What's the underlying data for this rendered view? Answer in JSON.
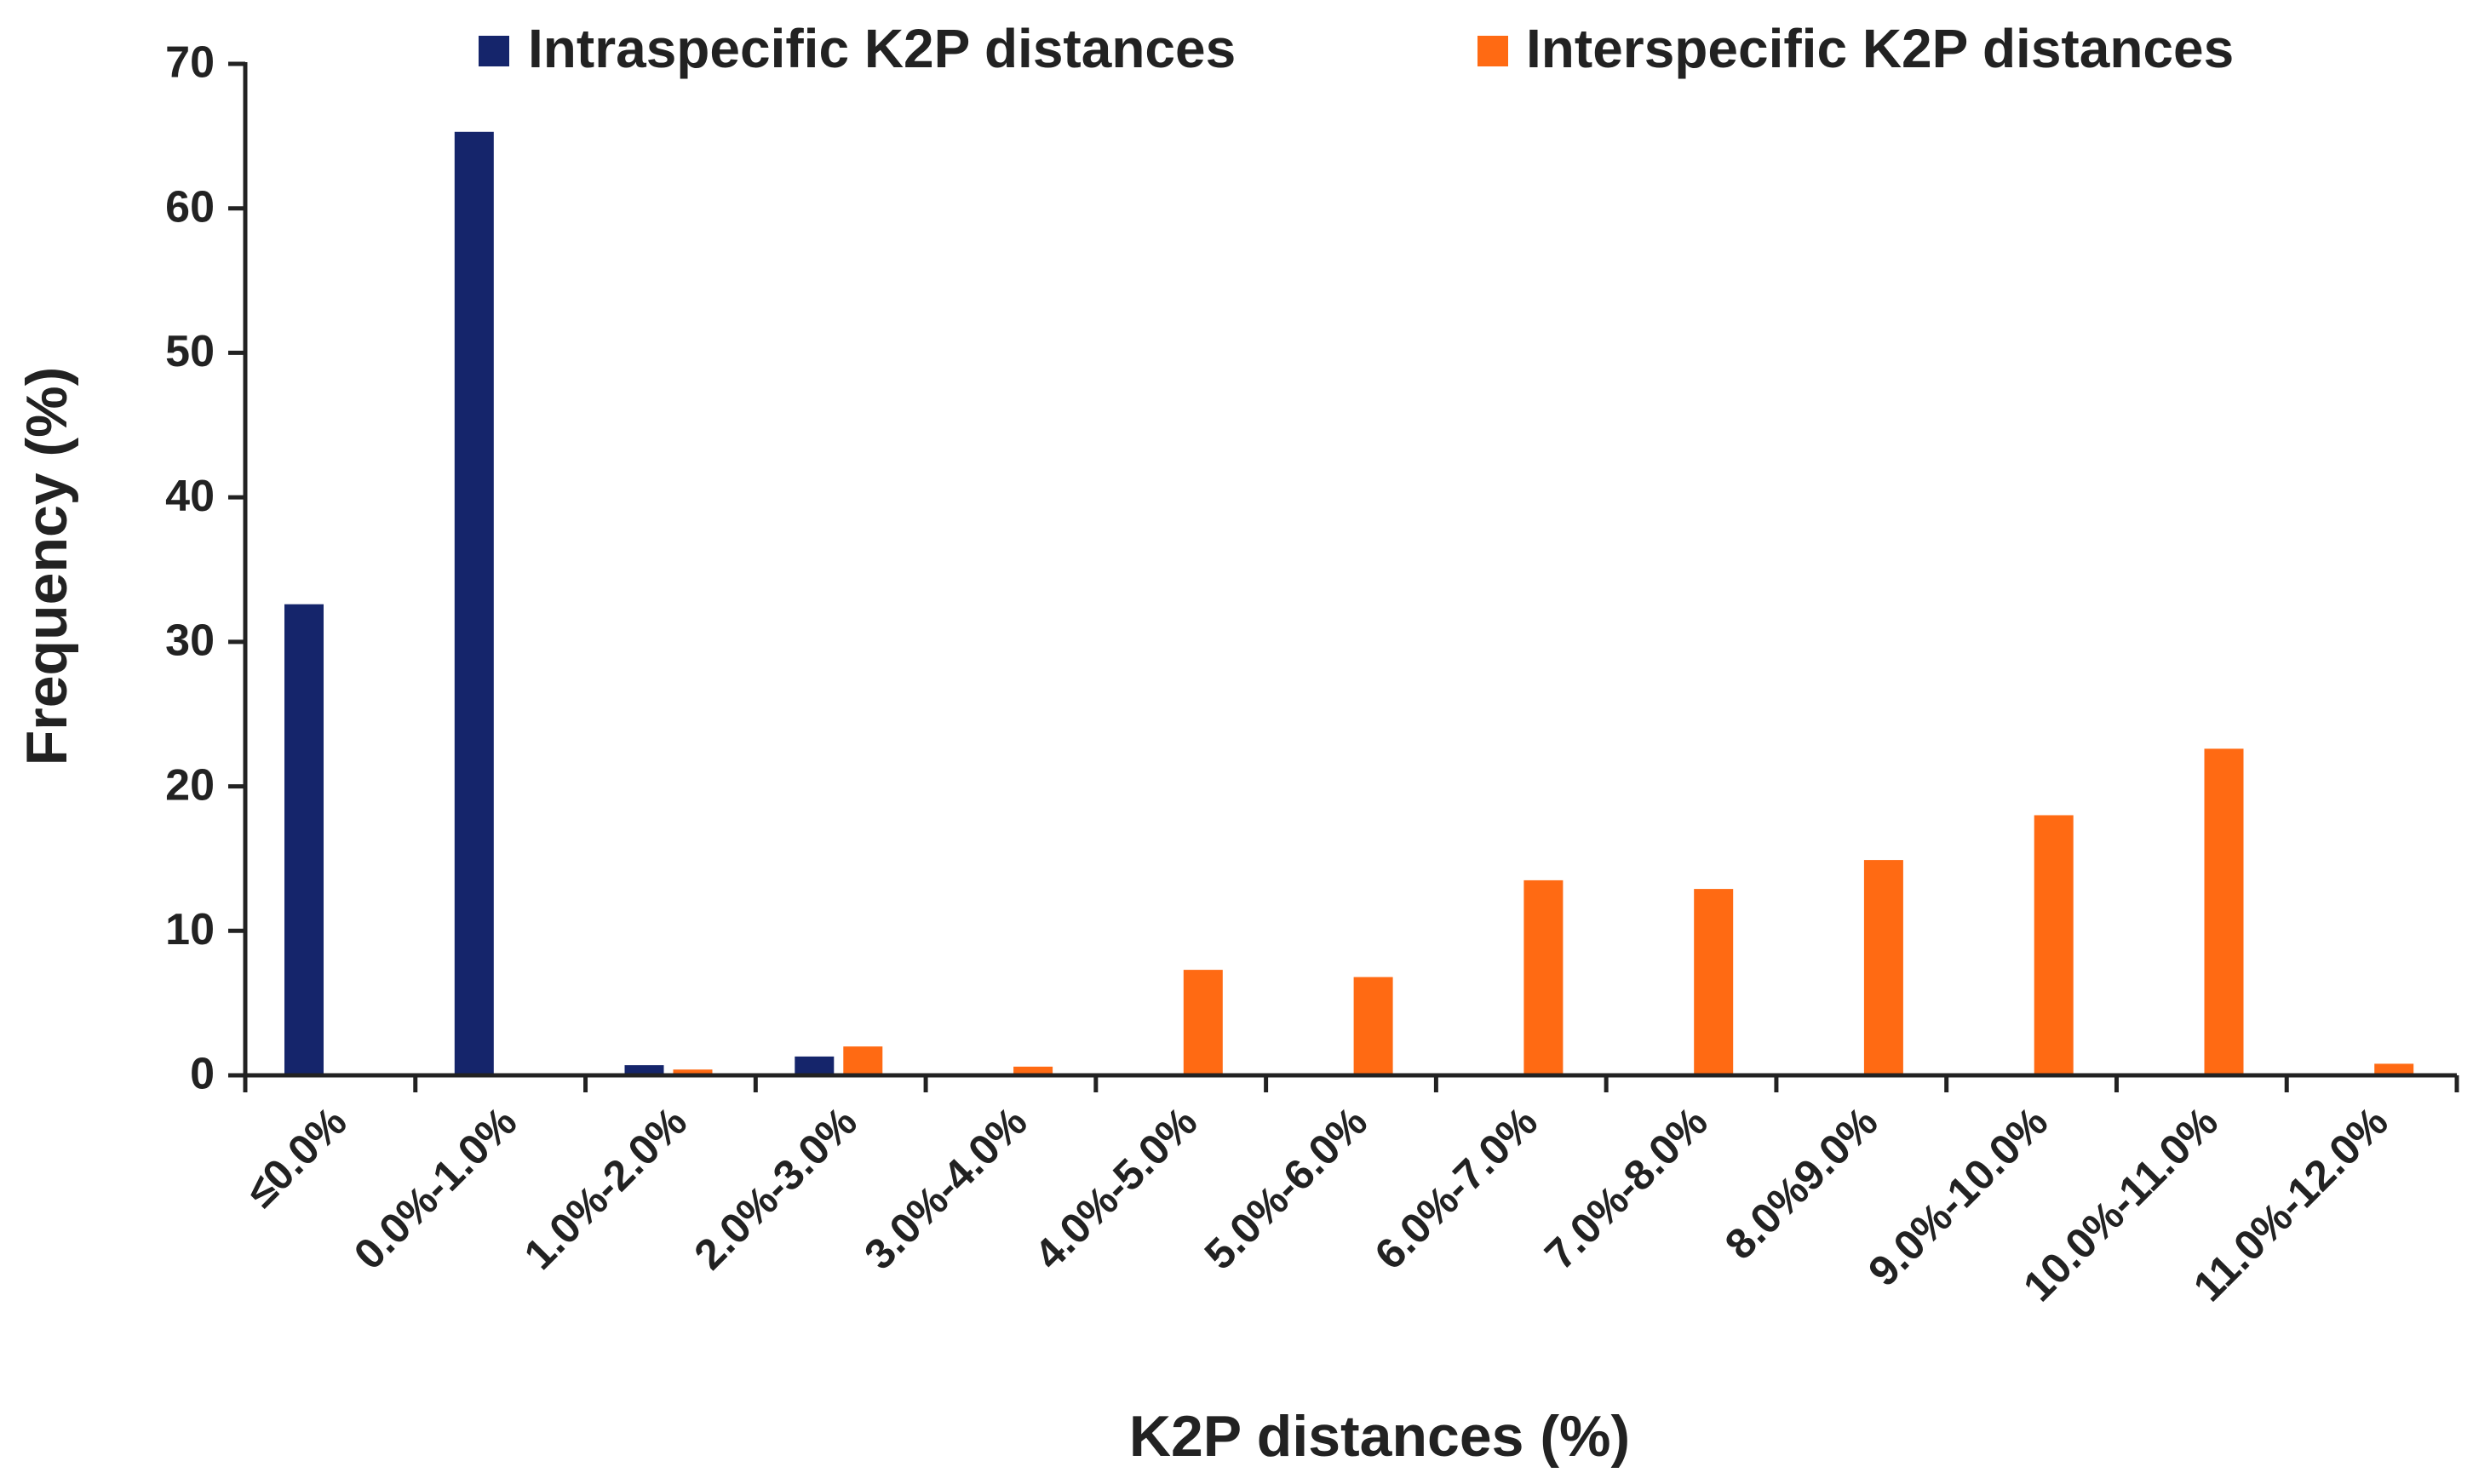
{
  "chart_data": {
    "type": "bar",
    "title": "",
    "xlabel": "K2P distances (%)",
    "ylabel": "Frequency (%)",
    "ylim": [
      0,
      70
    ],
    "yticks": [
      0,
      10,
      20,
      30,
      40,
      50,
      60,
      70
    ],
    "legend_position": "top",
    "grid": false,
    "categories": [
      "≤0.0%",
      "0.0%-1.0%",
      "1.0%-2.0%",
      "2.0%-3.0%",
      "3.0%-4.0%",
      "4.0%-5.0%",
      "5.0%-6.0%",
      "6.0%-7.0%",
      "7.0%-8.0%",
      "8.0%9.0%",
      "9.0%-10.0%",
      "10.0%-11.0%",
      "11.0%-12.0%"
    ],
    "series": [
      {
        "name": "Intraspecific K2P distances",
        "color": "#15256b",
        "values": [
          32.6,
          65.3,
          0.7,
          1.3,
          0,
          0,
          0,
          0,
          0,
          0,
          0,
          0,
          0
        ]
      },
      {
        "name": "Interspecific K2P distances",
        "color": "#ff6a13",
        "values": [
          0,
          0,
          0.4,
          2.0,
          0.6,
          7.3,
          6.8,
          13.5,
          12.9,
          14.9,
          18.0,
          22.6,
          0.8
        ]
      }
    ]
  }
}
